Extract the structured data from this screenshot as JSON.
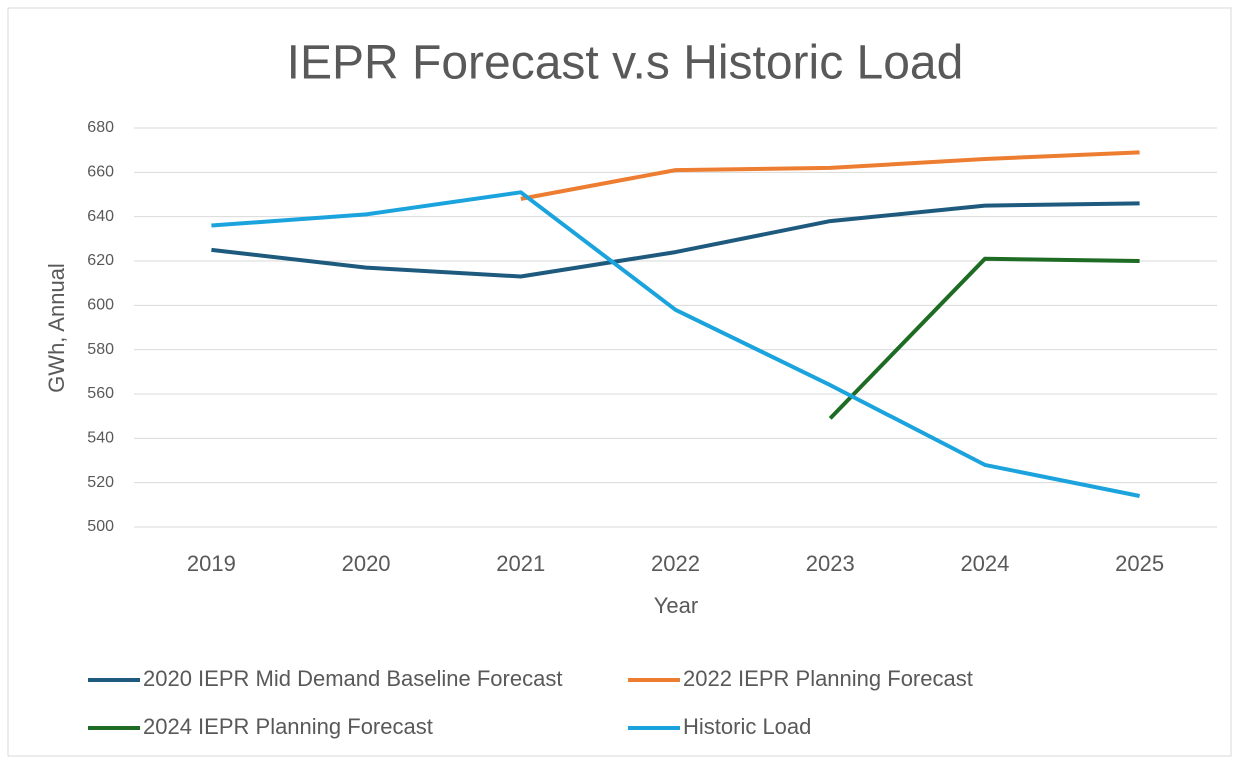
{
  "chart_data": {
    "type": "line",
    "title": "IEPR Forecast v.s Historic Load",
    "x_label": "Year",
    "y_label": "GWh, Annual",
    "categories": [
      "2019",
      "2020",
      "2021",
      "2022",
      "2023",
      "2024",
      "2025"
    ],
    "series": [
      {
        "name": "2020 IEPR Mid Demand Baseline Forecast",
        "color": "#1d5a7d",
        "values": [
          625,
          617,
          613,
          624,
          638,
          645,
          646
        ]
      },
      {
        "name": "2022 IEPR Planning Forecast",
        "color": "#ed7d31",
        "values": [
          null,
          null,
          648,
          661,
          662,
          666,
          669
        ]
      },
      {
        "name": "2024 IEPR Planning Forecast",
        "color": "#1e6b24",
        "values": [
          null,
          null,
          null,
          null,
          549,
          621,
          620
        ]
      },
      {
        "name": "Historic Load",
        "color": "#1aa3dc",
        "values": [
          636,
          641,
          651,
          598,
          564,
          528,
          514
        ]
      }
    ],
    "ylim": [
      500,
      680
    ],
    "yticks": [
      500,
      520,
      540,
      560,
      580,
      600,
      620,
      640,
      660,
      680
    ],
    "grid": true,
    "legend": "bottom"
  }
}
